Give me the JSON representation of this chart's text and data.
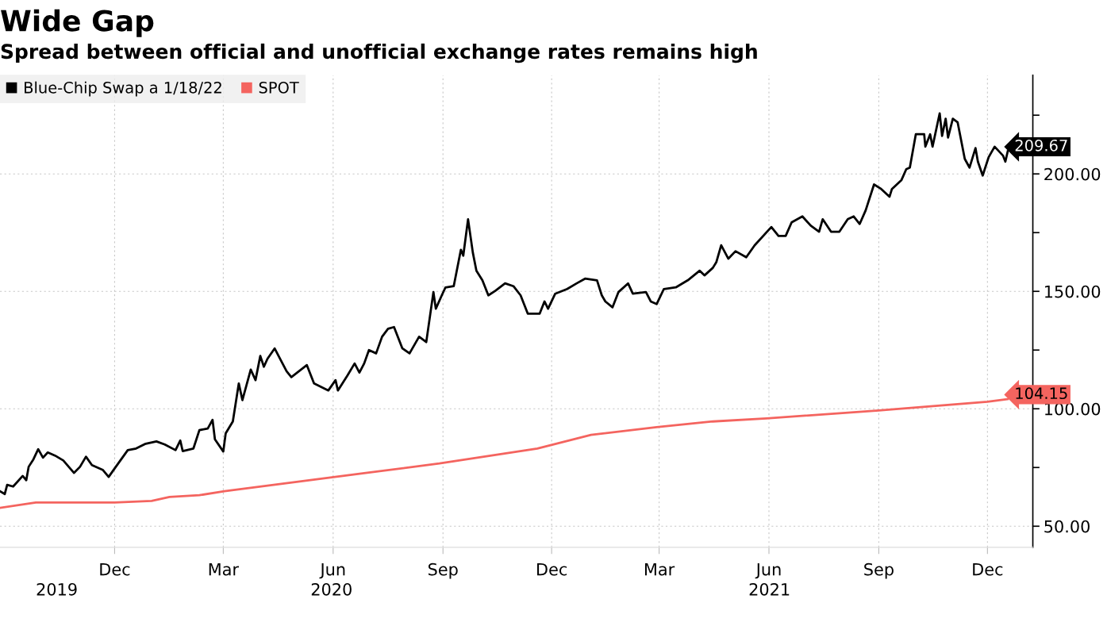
{
  "chart_data": {
    "type": "line",
    "title": "Wide Gap",
    "subtitle": "Spread between official and unofficial exchange rates remains high",
    "xlim": [
      "2019-08-27",
      "2022-01-08"
    ],
    "xticks": [
      {
        "value": "2019-12-01",
        "label": "Dec"
      },
      {
        "value": "2020-03-01",
        "label": "Mar"
      },
      {
        "value": "2020-06-01",
        "label": "Jun"
      },
      {
        "value": "2020-09-01",
        "label": "Sep"
      },
      {
        "value": "2020-12-01",
        "label": "Dec"
      },
      {
        "value": "2021-03-01",
        "label": "Mar"
      },
      {
        "value": "2021-06-01",
        "label": "Jun"
      },
      {
        "value": "2021-09-01",
        "label": "Sep"
      },
      {
        "value": "2021-12-01",
        "label": "Dec"
      }
    ],
    "ylim": [
      41,
      242
    ],
    "yticks": [
      {
        "value": 50,
        "label": "50.00"
      },
      {
        "value": 75,
        "label": null
      },
      {
        "value": 100,
        "label": "100.00"
      },
      {
        "value": 125,
        "label": null
      },
      {
        "value": 150,
        "label": "150.00"
      },
      {
        "value": 175,
        "label": null
      },
      {
        "value": 200,
        "label": "200.00"
      },
      {
        "value": 225,
        "label": null
      }
    ],
    "grid": true,
    "legend": "top left",
    "marker": "none",
    "line_style": "solid",
    "series": [
      {
        "name": "Blue-Chip Swap a 1/18/22",
        "color": "#000000",
        "x": [
          "2019-08-27",
          "2019-08-31",
          "2019-09-02",
          "2019-09-07",
          "2019-09-15",
          "2019-09-18",
          "2019-09-20",
          "2019-09-24",
          "2019-09-28",
          "2019-10-02",
          "2019-10-06",
          "2019-10-12",
          "2019-10-19",
          "2019-10-28",
          "2019-11-02",
          "2019-11-07",
          "2019-11-12",
          "2019-11-21",
          "2019-11-26",
          "2019-12-02",
          "2019-12-12",
          "2019-12-19",
          "2019-12-27",
          "2020-01-05",
          "2020-01-12",
          "2020-01-21",
          "2020-01-25",
          "2020-01-27",
          "2020-02-05",
          "2020-02-10",
          "2020-02-17",
          "2020-02-21",
          "2020-02-23",
          "2020-03-01",
          "2020-03-03",
          "2020-03-09",
          "2020-03-14",
          "2020-03-17",
          "2020-03-24",
          "2020-03-28",
          "2020-04-01",
          "2020-04-04",
          "2020-04-07",
          "2020-04-13",
          "2020-04-23",
          "2020-04-27",
          "2020-05-10",
          "2020-05-16",
          "2020-05-28",
          "2020-06-03",
          "2020-06-05",
          "2020-06-13",
          "2020-06-19",
          "2020-06-23",
          "2020-06-27",
          "2020-07-01",
          "2020-07-07",
          "2020-07-12",
          "2020-07-17",
          "2020-07-22",
          "2020-07-29",
          "2020-08-04",
          "2020-08-12",
          "2020-08-18",
          "2020-08-24",
          "2020-08-26",
          "2020-08-31",
          "2020-09-03",
          "2020-09-10",
          "2020-09-16",
          "2020-09-18",
          "2020-09-22",
          "2020-09-26",
          "2020-09-29",
          "2020-10-04",
          "2020-10-09",
          "2020-10-15",
          "2020-10-23",
          "2020-10-30",
          "2020-11-05",
          "2020-11-11",
          "2020-11-21",
          "2020-11-25",
          "2020-11-28",
          "2020-12-04",
          "2020-12-14",
          "2020-12-22",
          "2020-12-29",
          "2021-01-08",
          "2021-01-12",
          "2021-01-15",
          "2021-01-21",
          "2021-01-26",
          "2021-02-03",
          "2021-02-07",
          "2021-02-18",
          "2021-02-22",
          "2021-02-27",
          "2021-03-05",
          "2021-03-15",
          "2021-03-25",
          "2021-04-04",
          "2021-04-08",
          "2021-04-15",
          "2021-04-18",
          "2021-04-22",
          "2021-04-28",
          "2021-05-04",
          "2021-05-13",
          "2021-05-20",
          "2021-06-03",
          "2021-06-09",
          "2021-06-15",
          "2021-06-20",
          "2021-06-29",
          "2021-07-06",
          "2021-07-13",
          "2021-07-16",
          "2021-07-23",
          "2021-07-30",
          "2021-08-06",
          "2021-08-11",
          "2021-08-16",
          "2021-08-21",
          "2021-08-28",
          "2021-09-03",
          "2021-09-10",
          "2021-09-12",
          "2021-09-20",
          "2021-09-24",
          "2021-09-27",
          "2021-10-02",
          "2021-10-09",
          "2021-10-10",
          "2021-10-14",
          "2021-10-16",
          "2021-10-22",
          "2021-10-24",
          "2021-10-27",
          "2021-10-29",
          "2021-11-02",
          "2021-11-06",
          "2021-11-12",
          "2021-11-16",
          "2021-11-21",
          "2021-11-23",
          "2021-11-27",
          "2021-12-02",
          "2021-12-07",
          "2021-12-14",
          "2021-12-16",
          "2021-12-18"
        ],
        "value_labels": [
          null,
          null,
          null,
          null,
          null,
          null,
          null,
          null,
          null,
          null,
          null,
          null,
          null,
          null,
          null,
          null,
          null,
          null,
          null,
          null,
          null,
          null,
          null,
          null,
          null,
          null,
          null,
          null,
          null,
          null,
          null,
          null,
          null,
          null,
          null,
          null,
          null,
          null,
          null,
          null,
          null,
          null,
          null,
          null,
          null,
          null,
          null,
          null,
          null,
          null,
          null,
          null,
          null,
          null,
          null,
          null,
          null,
          null,
          null,
          null,
          null,
          null,
          null,
          null,
          null,
          null,
          null,
          null,
          null,
          null,
          null,
          null,
          null,
          null,
          null,
          null,
          null,
          null,
          null,
          null,
          null,
          null,
          null,
          null,
          null,
          null,
          null,
          null,
          null,
          null,
          null,
          null,
          null,
          null,
          null,
          null,
          null,
          null,
          null,
          null,
          null,
          null,
          null,
          null,
          null,
          null,
          null,
          null,
          null,
          null,
          null,
          null,
          null,
          null,
          null,
          null,
          null,
          null,
          null,
          null,
          null,
          null,
          null,
          null,
          null,
          null,
          null,
          null,
          null,
          null,
          null,
          null,
          null,
          null,
          null,
          null,
          null,
          null,
          null,
          null,
          null,
          null,
          null,
          null,
          null,
          null,
          null,
          null,
          null,
          null,
          null,
          "209.67"
        ],
        "values": [
          64.9,
          63.7,
          67.6,
          66.9,
          71.4,
          69.6,
          75.3,
          78.5,
          82.8,
          79.2,
          81.4,
          80.1,
          78.0,
          72.7,
          75.3,
          79.6,
          76.0,
          74.0,
          71.0,
          75.3,
          82.4,
          83.1,
          85.1,
          86.1,
          84.8,
          82.4,
          86.5,
          82.0,
          83.1,
          90.9,
          91.6,
          95.3,
          87.0,
          81.8,
          89.5,
          94.6,
          110.8,
          103.7,
          116.7,
          112.2,
          122.5,
          117.9,
          121.3,
          125.7,
          116.0,
          113.5,
          118.6,
          110.8,
          107.8,
          112.2,
          107.8,
          114.2,
          119.3,
          115.4,
          119.3,
          125.0,
          123.6,
          130.7,
          134.1,
          134.8,
          125.7,
          123.6,
          130.7,
          128.4,
          149.7,
          142.6,
          148.3,
          151.6,
          152.2,
          167.7,
          165.2,
          180.7,
          166.5,
          158.8,
          154.7,
          148.3,
          150.3,
          153.4,
          152.2,
          148.3,
          140.5,
          140.5,
          145.7,
          142.6,
          149.0,
          151.0,
          153.4,
          155.4,
          154.7,
          148.3,
          145.7,
          143.2,
          149.7,
          153.4,
          149.0,
          149.7,
          145.7,
          144.6,
          151.0,
          151.7,
          154.7,
          158.8,
          156.8,
          160.0,
          162.5,
          169.6,
          163.9,
          167.1,
          164.5,
          169.6,
          177.4,
          173.6,
          173.6,
          179.4,
          181.9,
          178.0,
          175.4,
          180.7,
          175.4,
          175.4,
          180.7,
          181.9,
          178.7,
          184.5,
          195.5,
          193.6,
          190.3,
          193.6,
          197.4,
          202.0,
          202.7,
          216.9,
          216.9,
          211.6,
          216.9,
          211.6,
          225.8,
          216.2,
          223.5,
          215.5,
          223.5,
          222.0,
          206.4,
          202.7,
          211.0,
          205.2,
          199.3,
          207.1,
          211.6,
          207.8,
          205.2,
          209.67
        ]
      },
      {
        "name": "SPOT",
        "color": "#f4645f",
        "x": [
          "2019-08-27",
          "2019-09-26",
          "2019-12-01",
          "2020-01-01",
          "2020-01-16",
          "2020-02-10",
          "2020-03-02",
          "2020-06-27",
          "2020-08-29",
          "2020-11-19",
          "2021-01-03",
          "2021-02-27",
          "2021-04-15",
          "2021-05-30",
          "2021-09-01",
          "2021-12-01",
          "2021-12-18"
        ],
        "value_labels": [
          null,
          null,
          null,
          null,
          null,
          null,
          null,
          null,
          null,
          null,
          null,
          null,
          null,
          null,
          null,
          null,
          "104.15"
        ],
        "values": [
          57.8,
          60.1,
          60.1,
          60.8,
          62.5,
          63.2,
          64.9,
          72.6,
          76.7,
          83.1,
          88.9,
          92.2,
          94.6,
          95.9,
          99.3,
          103.0,
          104.15
        ]
      }
    ],
    "annotations": [
      "2019",
      "2020",
      "2021"
    ]
  }
}
